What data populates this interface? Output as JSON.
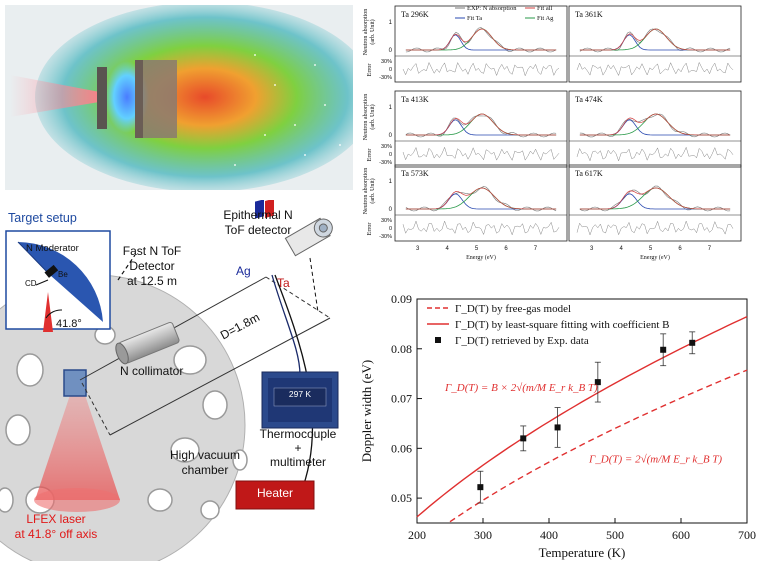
{
  "target_setup": {
    "title": "Target setup",
    "moderator": "N Moderator",
    "be": "Be",
    "cd": "CD",
    "angle": "41.8°"
  },
  "labels": {
    "epithermal": "Epithermal N",
    "tof_detector": "ToF detector",
    "fast_tof_1": "Fast N ToF",
    "fast_tof_2": "Detector",
    "fast_tof_3": "at 12.5 m",
    "ag": "Ag",
    "ta": "Ta",
    "distance": "D=1.8m",
    "collimator": "N collimator",
    "temp_display": "297 K",
    "thermo_1": "Thermocouple",
    "thermo_2": "+",
    "thermo_3": "multimeter",
    "chamber_1": "High vacuum",
    "chamber_2": "chamber",
    "heater": "Heater",
    "laser_1": "LFEX laser",
    "laser_2": "at 41.8° off axis"
  },
  "spectra": {
    "panels": [
      "Ta 296K",
      "Ta 361K",
      "Ta 413K",
      "Ta 474K",
      "Ta 573K",
      "Ta 617K"
    ],
    "legend": [
      "EXP: N absorption",
      "Fit Ta",
      "Fit all",
      "Fit Ag"
    ],
    "ylabel_1": "Neutron absorption",
    "ylabel_2": "(arb. Unit)",
    "err_label": "Error",
    "err_ticks": [
      "30%",
      "0",
      "-30%"
    ],
    "y_ticks": [
      "1",
      "0"
    ],
    "x_ticks": [
      "3",
      "4",
      "5",
      "6",
      "7"
    ],
    "xlabel": "Energy (eV)"
  },
  "chart_data": {
    "type": "scatter",
    "xlabel": "Temperature (K)",
    "ylabel": "Doppler width (eV)",
    "xlim": [
      200,
      700
    ],
    "ylim": [
      0.045,
      0.09
    ],
    "x_ticks": [
      "200",
      "300",
      "400",
      "500",
      "600",
      "700"
    ],
    "y_ticks": [
      "0.05",
      "0.06",
      "0.07",
      "0.08",
      "0.09"
    ],
    "legend": [
      "Γ_D(T) by free-gas model",
      "Γ_D(T) by least-square fitting with coefficient B",
      "Γ_D(T) retrieved by Exp. data"
    ],
    "annotation_fit": "Γ_D(T) = B × 2√(m/M E_r k_B T)",
    "annotation_freegas": "Γ_D(T) = 2√(m/M E_r k_B T)",
    "series": [
      {
        "name": "Γ_D(T) retrieved by Exp. data",
        "type": "scatter",
        "x": [
          296,
          361,
          413,
          474,
          573,
          617
        ],
        "y": [
          0.0522,
          0.062,
          0.0642,
          0.0733,
          0.0798,
          0.0812
        ],
        "err": [
          0.0032,
          0.0025,
          0.004,
          0.004,
          0.0032,
          0.0022
        ]
      },
      {
        "name": "Γ_D(T) by least-square fitting with coefficient B",
        "type": "line",
        "coef": 0.003268
      },
      {
        "name": "Γ_D(T) by free-gas model",
        "type": "line",
        "coef": 0.002862
      }
    ],
    "colors": {
      "fit": "#e03030",
      "exp": "#111111"
    }
  }
}
